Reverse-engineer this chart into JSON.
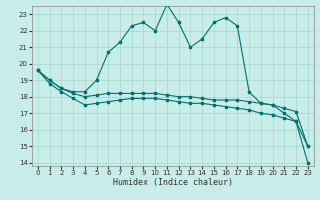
{
  "xlabel": "Humidex (Indice chaleur)",
  "xlim": [
    -0.5,
    23.5
  ],
  "ylim": [
    13.8,
    23.5
  ],
  "yticks": [
    14,
    15,
    16,
    17,
    18,
    19,
    20,
    21,
    22,
    23
  ],
  "xticks": [
    0,
    1,
    2,
    3,
    4,
    5,
    6,
    7,
    8,
    9,
    10,
    11,
    12,
    13,
    14,
    15,
    16,
    17,
    18,
    19,
    20,
    21,
    22,
    23
  ],
  "bg_color": "#c8ece8",
  "line_color": "#007070",
  "grid_color": "#a0d8d0",
  "line1_x": [
    0,
    1,
    2,
    3,
    4,
    5,
    6,
    7,
    8,
    9,
    10,
    11,
    12,
    13,
    14,
    15,
    16,
    17,
    18,
    19,
    20,
    21,
    22,
    23
  ],
  "line1_y": [
    19.6,
    19.0,
    18.5,
    18.3,
    18.3,
    19.0,
    20.7,
    21.3,
    22.3,
    22.5,
    22.0,
    23.6,
    22.5,
    21.0,
    21.5,
    22.5,
    22.8,
    22.3,
    18.3,
    17.6,
    17.5,
    17.0,
    16.5,
    15.0
  ],
  "line2_x": [
    0,
    1,
    2,
    3,
    4,
    5,
    6,
    7,
    8,
    9,
    10,
    11,
    12,
    13,
    14,
    15,
    16,
    17,
    18,
    19,
    20,
    21,
    22,
    23
  ],
  "line2_y": [
    19.6,
    19.0,
    18.5,
    18.2,
    18.0,
    18.1,
    18.2,
    18.2,
    18.2,
    18.2,
    18.2,
    18.1,
    18.0,
    18.0,
    17.9,
    17.8,
    17.8,
    17.8,
    17.7,
    17.6,
    17.5,
    17.3,
    17.1,
    15.0
  ],
  "line3_x": [
    0,
    1,
    2,
    3,
    4,
    5,
    6,
    7,
    8,
    9,
    10,
    11,
    12,
    13,
    14,
    15,
    16,
    17,
    18,
    19,
    20,
    21,
    22,
    23
  ],
  "line3_y": [
    19.6,
    18.8,
    18.3,
    17.9,
    17.5,
    17.6,
    17.7,
    17.8,
    17.9,
    17.9,
    17.9,
    17.8,
    17.7,
    17.6,
    17.6,
    17.5,
    17.4,
    17.3,
    17.2,
    17.0,
    16.9,
    16.7,
    16.5,
    14.0
  ]
}
